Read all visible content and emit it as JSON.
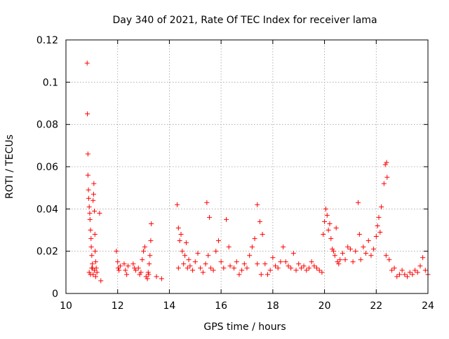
{
  "chart_data": {
    "type": "scatter",
    "title": "Day 340 of 2021, Rate Of TEC Index for receiver lama",
    "xlabel": "GPS time / hours",
    "ylabel": "ROTI / TECUs",
    "xlim": [
      10,
      24
    ],
    "ylim": [
      0,
      0.12
    ],
    "xticks": [
      10,
      12,
      14,
      16,
      18,
      20,
      22,
      24
    ],
    "yticks": [
      0,
      0.02,
      0.04,
      0.06,
      0.08,
      0.1,
      0.12
    ],
    "xtick_labels": [
      "10",
      "12",
      "14",
      "16",
      "18",
      "20",
      "22",
      "24"
    ],
    "ytick_labels": [
      "0",
      "0.02",
      "0.04",
      "0.06",
      "0.08",
      "0.1",
      "0.12"
    ],
    "grid": true,
    "marker": "+",
    "color": "#ff0000",
    "series": [
      {
        "name": "ROTI",
        "x": [
          10.82,
          10.83,
          10.85,
          10.85,
          10.87,
          10.88,
          10.9,
          10.92,
          10.93,
          10.95,
          10.97,
          10.98,
          11.0,
          11.02,
          11.03,
          11.05,
          11.07,
          11.08,
          11.1,
          11.12,
          11.13,
          11.15,
          11.17,
          11.2,
          11.3,
          11.35,
          10.9,
          10.95,
          11.0,
          11.05,
          11.1,
          11.15,
          11.95,
          12.0,
          12.02,
          12.05,
          12.1,
          12.25,
          12.3,
          12.35,
          12.4,
          12.6,
          12.65,
          12.7,
          12.8,
          12.85,
          12.9,
          12.95,
          13.0,
          13.05,
          13.1,
          13.15,
          13.2,
          13.25,
          13.3,
          13.28,
          13.22,
          13.18,
          13.5,
          13.7,
          14.3,
          14.35,
          14.4,
          14.45,
          14.5,
          14.55,
          14.6,
          14.65,
          14.7,
          14.75,
          14.8,
          14.9,
          15.0,
          15.1,
          15.2,
          15.3,
          15.4,
          15.5,
          15.6,
          15.7,
          15.8,
          15.9,
          16.0,
          16.1,
          16.2,
          16.3,
          16.35,
          15.45,
          15.55,
          14.35,
          16.5,
          16.6,
          16.7,
          16.8,
          16.9,
          17.0,
          17.1,
          17.2,
          17.3,
          17.4,
          17.5,
          17.6,
          17.7,
          17.8,
          17.9,
          18.0,
          18.1,
          18.2,
          18.3,
          17.4,
          17.55,
          18.4,
          18.5,
          18.6,
          18.7,
          18.8,
          18.9,
          19.0,
          19.1,
          19.2,
          19.3,
          19.4,
          19.5,
          19.6,
          19.7,
          19.8,
          19.9,
          19.95,
          20.0,
          20.05,
          20.1,
          20.15,
          20.2,
          20.25,
          20.3,
          20.35,
          20.4,
          20.45,
          20.5,
          20.55,
          20.6,
          20.7,
          20.8,
          20.9,
          21.0,
          21.1,
          21.2,
          21.3,
          21.35,
          21.4,
          21.5,
          21.6,
          21.7,
          21.8,
          21.9,
          22.0,
          22.05,
          22.1,
          22.15,
          22.2,
          22.3,
          22.35,
          22.4,
          22.42,
          22.38,
          22.5,
          22.6,
          22.7,
          22.8,
          22.9,
          23.0,
          23.1,
          23.2,
          23.3,
          23.4,
          23.5,
          23.6,
          23.7,
          23.8,
          23.9,
          24.0
        ],
        "y": [
          0.109,
          0.085,
          0.066,
          0.056,
          0.049,
          0.045,
          0.041,
          0.038,
          0.035,
          0.03,
          0.026,
          0.022,
          0.018,
          0.014,
          0.012,
          0.044,
          0.047,
          0.052,
          0.039,
          0.028,
          0.02,
          0.015,
          0.012,
          0.01,
          0.038,
          0.006,
          0.01,
          0.009,
          0.012,
          0.009,
          0.011,
          0.008,
          0.02,
          0.015,
          0.012,
          0.011,
          0.013,
          0.014,
          0.011,
          0.009,
          0.013,
          0.014,
          0.012,
          0.011,
          0.012,
          0.009,
          0.01,
          0.016,
          0.02,
          0.022,
          0.008,
          0.007,
          0.009,
          0.018,
          0.033,
          0.025,
          0.014,
          0.01,
          0.008,
          0.007,
          0.042,
          0.031,
          0.025,
          0.028,
          0.02,
          0.014,
          0.018,
          0.024,
          0.012,
          0.016,
          0.013,
          0.011,
          0.015,
          0.019,
          0.012,
          0.01,
          0.014,
          0.018,
          0.012,
          0.011,
          0.02,
          0.025,
          0.015,
          0.012,
          0.035,
          0.022,
          0.013,
          0.043,
          0.036,
          0.012,
          0.012,
          0.015,
          0.009,
          0.011,
          0.014,
          0.012,
          0.018,
          0.022,
          0.026,
          0.042,
          0.034,
          0.028,
          0.014,
          0.009,
          0.011,
          0.017,
          0.013,
          0.012,
          0.015,
          0.014,
          0.009,
          0.022,
          0.015,
          0.013,
          0.012,
          0.019,
          0.011,
          0.014,
          0.012,
          0.013,
          0.011,
          0.012,
          0.015,
          0.013,
          0.012,
          0.011,
          0.01,
          0.028,
          0.034,
          0.04,
          0.037,
          0.03,
          0.033,
          0.026,
          0.021,
          0.02,
          0.018,
          0.031,
          0.015,
          0.014,
          0.016,
          0.019,
          0.016,
          0.022,
          0.021,
          0.015,
          0.02,
          0.043,
          0.028,
          0.016,
          0.022,
          0.019,
          0.025,
          0.018,
          0.021,
          0.027,
          0.032,
          0.036,
          0.029,
          0.041,
          0.052,
          0.061,
          0.062,
          0.055,
          0.018,
          0.016,
          0.011,
          0.012,
          0.008,
          0.009,
          0.011,
          0.009,
          0.008,
          0.01,
          0.009,
          0.011,
          0.01,
          0.013,
          0.017,
          0.011,
          0.009
        ]
      }
    ]
  }
}
